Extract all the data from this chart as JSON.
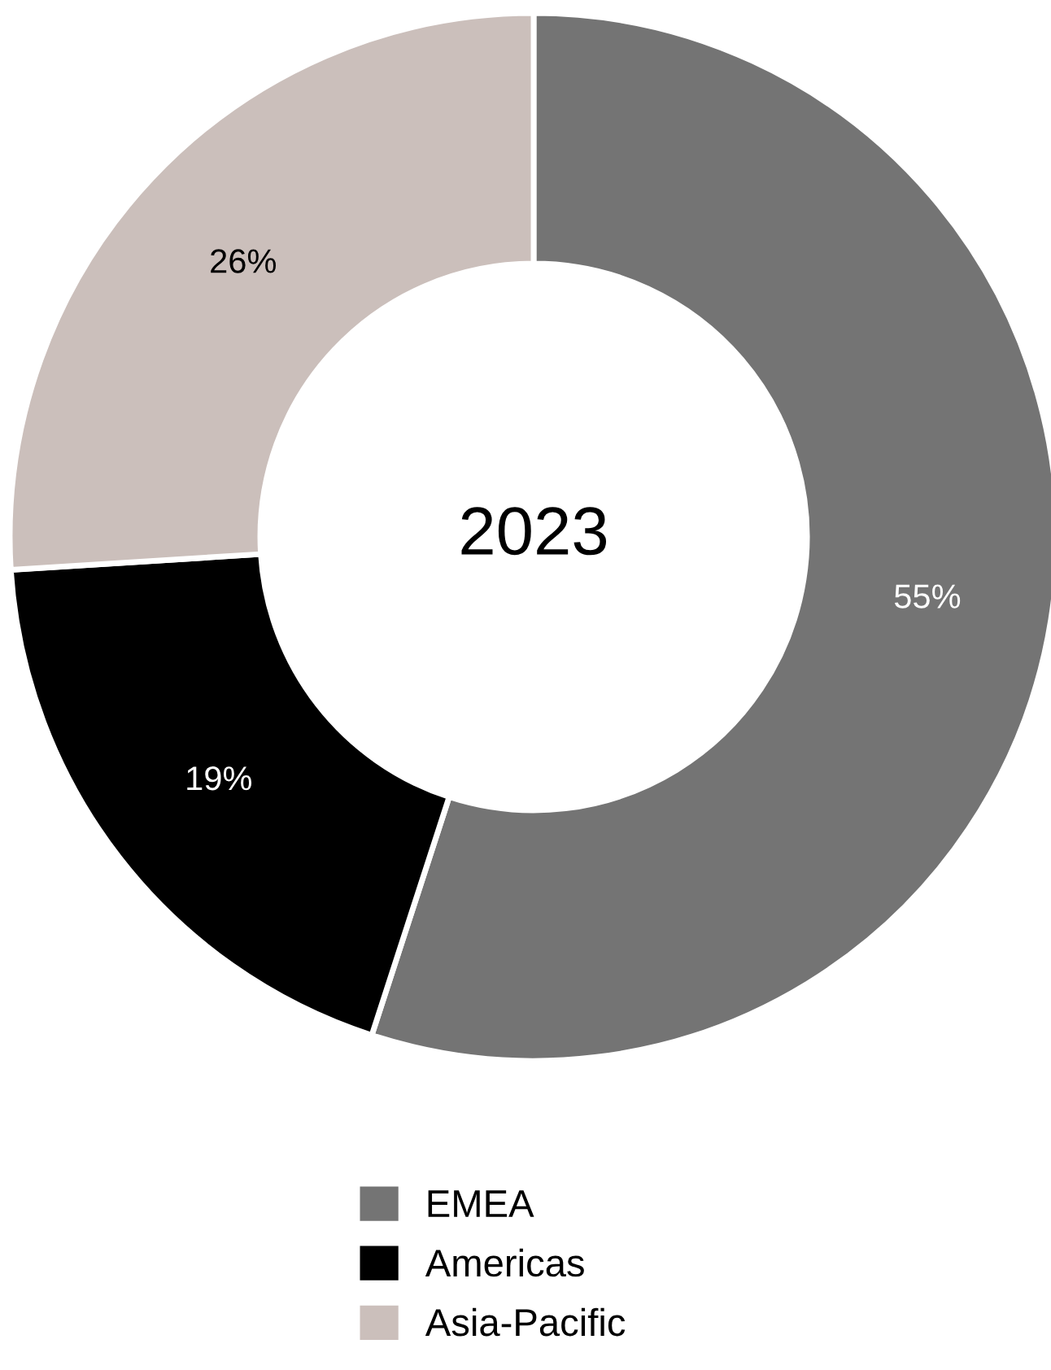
{
  "chart_data": {
    "type": "donut",
    "title": "2023",
    "categories": [
      "EMEA",
      "Americas",
      "Asia-Pacific"
    ],
    "values": [
      55,
      19,
      26
    ],
    "colors": [
      "#747474",
      "#000000",
      "#cbbfbb"
    ],
    "value_labels": [
      "55%",
      "19%",
      "26%"
    ],
    "legend": "bottom"
  }
}
